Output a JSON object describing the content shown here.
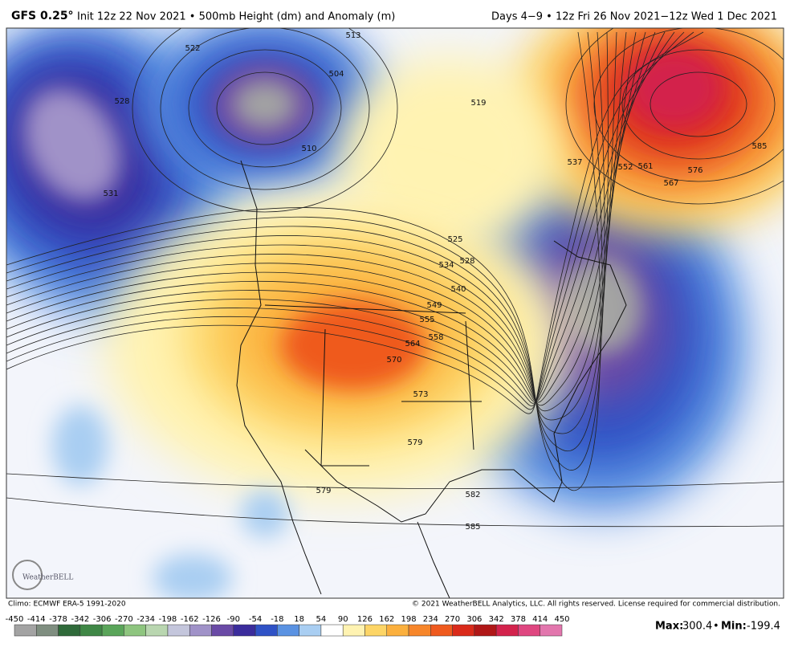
{
  "header": {
    "model": "GFS 0.25°",
    "subtitle": "Init 12z 22 Nov 2021 • 500mb Height (dm) and Anomaly (m)",
    "valid": "Days 4−9 • 12z Fri 26 Nov 2021−12z Wed 1 Dec 2021"
  },
  "contour_labels": [
    "513",
    "504",
    "510",
    "522",
    "528",
    "531",
    "519",
    "537",
    "552",
    "561",
    "567",
    "576",
    "585",
    "525",
    "528",
    "534",
    "540",
    "549",
    "555",
    "558",
    "564",
    "570",
    "573",
    "579",
    "582",
    "585",
    "579"
  ],
  "logo": "WeatherBELL",
  "footer": {
    "climo": "Climo: ECMWF ERA-5 1991-2020",
    "copyright": "© 2021 WeatherBELL Analytics, LLC. All rights reserved. License required for commercial distribution."
  },
  "colorbar": {
    "ticks": [
      -450,
      -414,
      -378,
      -342,
      -306,
      -270,
      -234,
      -198,
      -162,
      -126,
      -90,
      -54,
      -18,
      18,
      54,
      90,
      126,
      162,
      198,
      234,
      270,
      306,
      342,
      378,
      414,
      450
    ],
    "colors": [
      "#a3a3a3",
      "#7f8e80",
      "#2f6a3a",
      "#3f8746",
      "#5aa55a",
      "#8ec57f",
      "#b9d6b0",
      "#c4c6dc",
      "#a092c8",
      "#6a4aa6",
      "#3b2c9c",
      "#2f52c6",
      "#5a92e2",
      "#a9cef2",
      "#ffffff",
      "#fff3b2",
      "#fdd566",
      "#fbb03e",
      "#f7862a",
      "#ef5a1e",
      "#da2a1a",
      "#b01717",
      "#d3224c",
      "#df4680",
      "#e276ad",
      "#e8a8cc"
    ]
  },
  "stats": {
    "max_label": "Max:",
    "max": 300.4,
    "min_label": "Min:",
    "min": -199.4
  }
}
